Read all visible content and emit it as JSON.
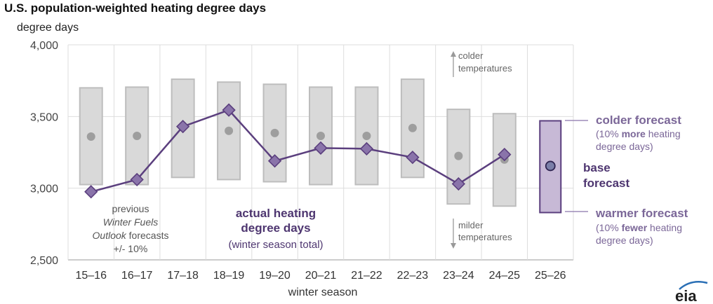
{
  "chart_data": {
    "type": "line",
    "title": "U.S. population-weighted heating degree days",
    "ylabel": "degree days",
    "xlabel": "winter season",
    "ylim": [
      2500,
      4000
    ],
    "yticks": [
      2500,
      3000,
      3500,
      4000
    ],
    "ytick_labels": [
      "2,500",
      "3,000",
      "3,500",
      "4,000"
    ],
    "grid": true,
    "categories": [
      "15–16",
      "16–17",
      "17–18",
      "18–19",
      "19–20",
      "20–21",
      "21–22",
      "22–23",
      "23–24",
      "24–25",
      "25–26"
    ],
    "series": [
      {
        "name": "actual heating degree days",
        "values": [
          2975,
          3060,
          3430,
          3545,
          3190,
          3280,
          3275,
          3215,
          3030,
          3235,
          null
        ]
      }
    ],
    "previous_forecasts": {
      "point": [
        3360,
        3365,
        null,
        3400,
        3385,
        3365,
        3365,
        3420,
        3225,
        3200,
        null
      ],
      "low": [
        3025,
        3025,
        3075,
        3060,
        3045,
        3025,
        3025,
        3075,
        2890,
        2875,
        null
      ],
      "high": [
        3700,
        3705,
        3760,
        3740,
        3725,
        3705,
        3705,
        3760,
        3550,
        3520,
        null
      ]
    },
    "current_forecast": {
      "category": "25–26",
      "base": 3155,
      "low": 2830,
      "high": 3470
    },
    "colors": {
      "actual": "#5b3f7e",
      "actual_marker": "#8a74aa",
      "range_fill": "#d9d9d9",
      "range_stroke": "#bdbdbd",
      "prev_point": "#9e9e9e",
      "forecast_fill": "#c7b9d6",
      "forecast_stroke": "#5b3f7e",
      "forecast_text": "#7b6798",
      "grid": "#dddddd"
    }
  },
  "annotations": {
    "colder_arrow": [
      "colder",
      "temperatures"
    ],
    "milder_arrow": [
      "milder",
      "temperatures"
    ],
    "previous_lines": [
      "previous",
      "Winter Fuels",
      "Outlook forecasts",
      "+/- 10%"
    ],
    "actual_label": [
      "actual heating",
      "degree days"
    ],
    "actual_sub": "(winter season total)",
    "colder_forecast": {
      "title": "colder forecast",
      "pre": "(10% ",
      "bold": "more",
      "post": " heating",
      "line2": "degree days)"
    },
    "warmer_forecast": {
      "title": "warmer forecast",
      "pre": "(10% ",
      "bold": "fewer",
      "post": " heating",
      "line2": "degree days)"
    },
    "base_forecast": [
      "base",
      "forecast"
    ]
  },
  "logo": "eia"
}
